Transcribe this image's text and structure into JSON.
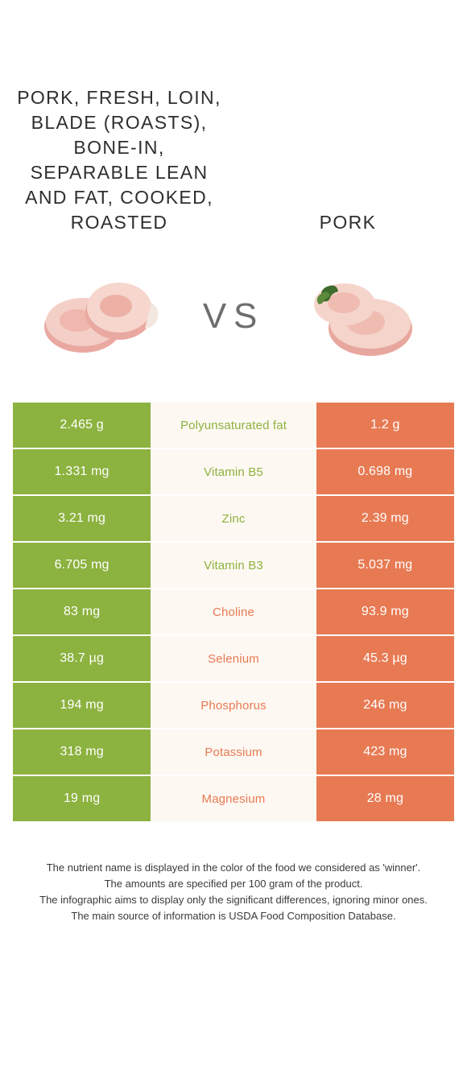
{
  "colors": {
    "left": "#8cb23f",
    "right": "#e77a53",
    "mid_bg": "#fef8f2"
  },
  "titles": {
    "left": "PORK, FRESH, LOIN, BLADE (ROASTS), BONE-IN, SEPARABLE LEAN AND FAT, COOKED, ROASTED",
    "right": "PORK"
  },
  "vs_label": "VS",
  "rows": [
    {
      "label": "Polyunsaturated fat",
      "left": "2.465 g",
      "right": "1.2 g",
      "winner": "left"
    },
    {
      "label": "Vitamin B5",
      "left": "1.331 mg",
      "right": "0.698 mg",
      "winner": "left"
    },
    {
      "label": "Zinc",
      "left": "3.21 mg",
      "right": "2.39 mg",
      "winner": "left"
    },
    {
      "label": "Vitamin B3",
      "left": "6.705 mg",
      "right": "5.037 mg",
      "winner": "left"
    },
    {
      "label": "Choline",
      "left": "83 mg",
      "right": "93.9 mg",
      "winner": "right"
    },
    {
      "label": "Selenium",
      "left": "38.7 µg",
      "right": "45.3 µg",
      "winner": "right"
    },
    {
      "label": "Phosphorus",
      "left": "194 mg",
      "right": "246 mg",
      "winner": "right"
    },
    {
      "label": "Potassium",
      "left": "318 mg",
      "right": "423 mg",
      "winner": "right"
    },
    {
      "label": "Magnesium",
      "left": "19 mg",
      "right": "28 mg",
      "winner": "right"
    }
  ],
  "footer": {
    "l1": "The nutrient name is displayed in the color of the food we considered as 'winner'.",
    "l2": "The amounts are specified per 100 gram of the product.",
    "l3": "The infographic aims to display only the significant differences, ignoring minor ones.",
    "l4": "The main source of information is USDA Food Composition Database."
  }
}
